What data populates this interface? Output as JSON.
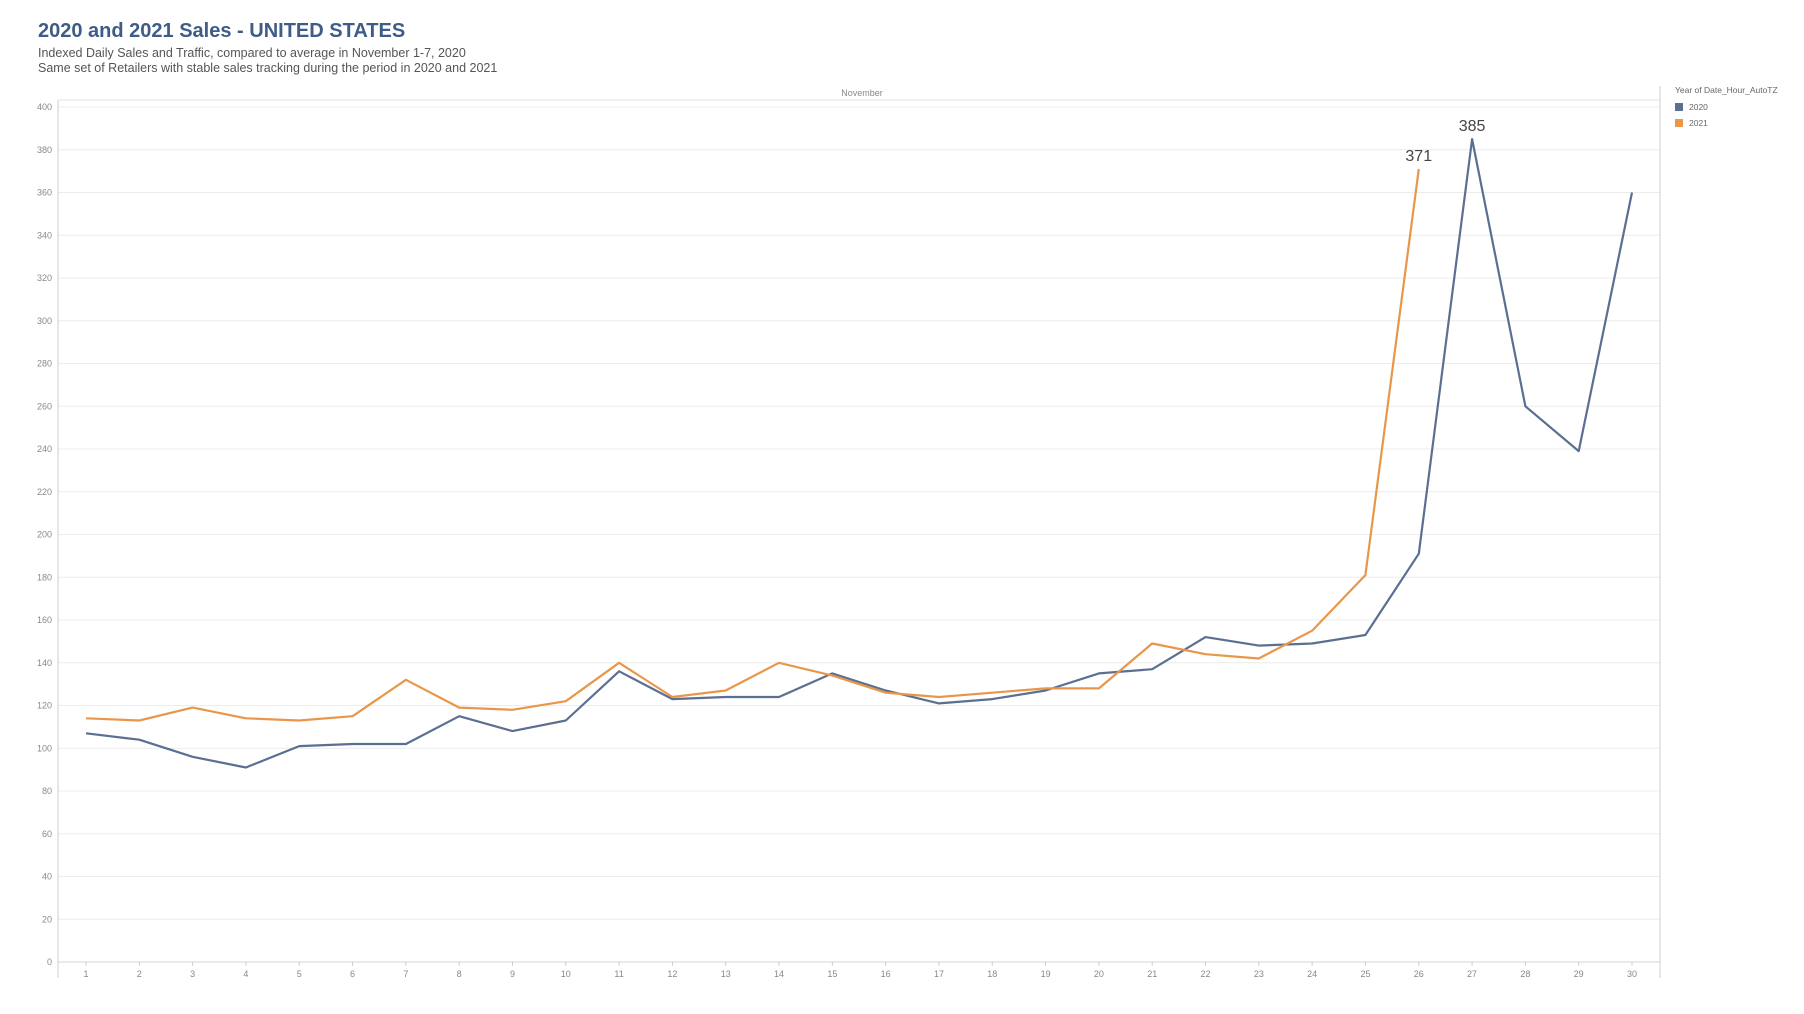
{
  "title": "2020 and 2021 Sales - UNITED STATES",
  "subtitle1": "Indexed Daily Sales and Traffic, compared to average in November 1-7, 2020",
  "subtitle2": "Same set of Retailers with stable sales tracking during the period in 2020 and 2021",
  "chart_data": {
    "type": "line",
    "title": "2020 and 2021 Sales - UNITED STATES",
    "column_header": "November",
    "x": [
      1,
      2,
      3,
      4,
      5,
      6,
      7,
      8,
      9,
      10,
      11,
      12,
      13,
      14,
      15,
      16,
      17,
      18,
      19,
      20,
      21,
      22,
      23,
      24,
      25,
      26,
      27,
      28,
      29,
      30
    ],
    "ylim": [
      0,
      400
    ],
    "yticks": [
      0,
      20,
      40,
      60,
      80,
      100,
      120,
      140,
      160,
      180,
      200,
      220,
      240,
      260,
      280,
      300,
      320,
      340,
      360,
      380,
      400
    ],
    "grid": true,
    "legend_title": "Year of Date_Hour_AutoTZ",
    "legend_position": "top-right",
    "series": [
      {
        "name": "2020",
        "color": "#5a6f92",
        "values": [
          107,
          104,
          96,
          91,
          101,
          102,
          102,
          115,
          108,
          113,
          136,
          123,
          124,
          124,
          135,
          127,
          121,
          123,
          127,
          135,
          137,
          152,
          148,
          149,
          153,
          191,
          385,
          260,
          239,
          360
        ]
      },
      {
        "name": "2021",
        "color": "#e8974a",
        "values": [
          114,
          113,
          119,
          114,
          113,
          115,
          132,
          119,
          118,
          122,
          140,
          124,
          127,
          140,
          134,
          126,
          124,
          126,
          128,
          128,
          149,
          144,
          142,
          155,
          181,
          371,
          null,
          null,
          null,
          null
        ]
      }
    ],
    "annotations": [
      {
        "series": "2021",
        "x": 26,
        "label": "371"
      },
      {
        "series": "2020",
        "x": 27,
        "label": "385"
      }
    ]
  }
}
